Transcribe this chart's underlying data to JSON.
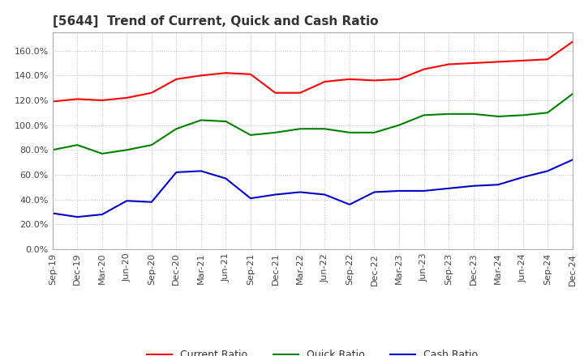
{
  "title": "[5644]  Trend of Current, Quick and Cash Ratio",
  "x_labels": [
    "Sep-19",
    "Dec-19",
    "Mar-20",
    "Jun-20",
    "Sep-20",
    "Dec-20",
    "Mar-21",
    "Jun-21",
    "Sep-21",
    "Dec-21",
    "Mar-22",
    "Jun-22",
    "Sep-22",
    "Dec-22",
    "Mar-23",
    "Jun-23",
    "Sep-23",
    "Dec-23",
    "Mar-24",
    "Jun-24",
    "Sep-24",
    "Dec-24"
  ],
  "current_ratio": [
    119.0,
    121.0,
    120.0,
    122.0,
    126.0,
    137.0,
    140.0,
    142.0,
    141.0,
    126.0,
    126.0,
    135.0,
    137.0,
    136.0,
    137.0,
    145.0,
    149.0,
    150.0,
    151.0,
    152.0,
    153.0,
    167.0
  ],
  "quick_ratio": [
    80.0,
    84.0,
    77.0,
    80.0,
    84.0,
    97.0,
    104.0,
    103.0,
    92.0,
    94.0,
    97.0,
    97.0,
    94.0,
    94.0,
    100.0,
    108.0,
    109.0,
    109.0,
    107.0,
    108.0,
    110.0,
    125.0
  ],
  "cash_ratio": [
    29.0,
    26.0,
    28.0,
    39.0,
    38.0,
    62.0,
    63.0,
    57.0,
    41.0,
    44.0,
    46.0,
    44.0,
    36.0,
    46.0,
    47.0,
    47.0,
    49.0,
    51.0,
    52.0,
    58.0,
    63.0,
    72.0
  ],
  "current_color": "#FF0000",
  "quick_color": "#008000",
  "cash_color": "#0000CD",
  "ylim": [
    0.0,
    175.0
  ],
  "yticks": [
    0.0,
    20.0,
    40.0,
    60.0,
    80.0,
    100.0,
    120.0,
    140.0,
    160.0
  ],
  "background_color": "#FFFFFF",
  "grid_color": "#BBBBBB",
  "title_fontsize": 11,
  "legend_fontsize": 9,
  "tick_fontsize": 8
}
